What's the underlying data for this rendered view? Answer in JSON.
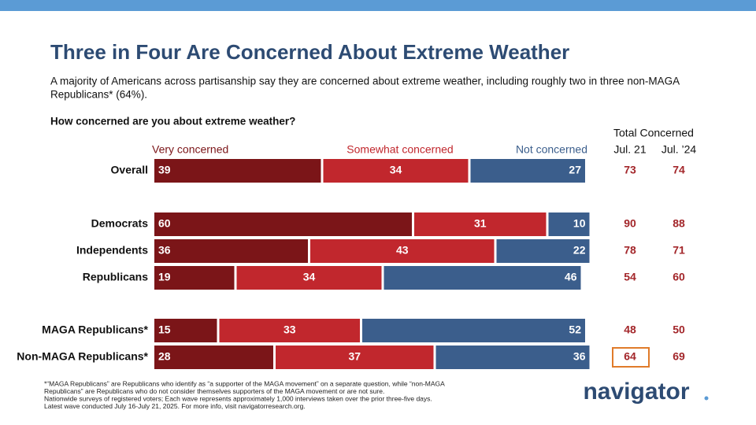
{
  "chart_data": {
    "type": "bar",
    "orientation": "horizontal",
    "stacked": true,
    "title": "Three in Four Are Concerned About Extreme Weather",
    "subtitle": [
      "A majority of Americans across partisanship say they are concerned about extreme weather, including roughly two in three non-MAGA",
      "Republicans* (64%)."
    ],
    "question": "How concerned are you about extreme weather?",
    "categories": [
      "Overall",
      "Democrats",
      "Independents",
      "Republicans",
      "MAGA Republicans*",
      "Non-MAGA Republicans*"
    ],
    "series": [
      {
        "name": "Very concerned",
        "color": "#7b1518",
        "values": [
          39,
          60,
          36,
          19,
          15,
          28
        ]
      },
      {
        "name": "Somewhat concerned",
        "color": "#c1272d",
        "values": [
          34,
          31,
          43,
          34,
          33,
          37
        ]
      },
      {
        "name": "Not concerned",
        "color": "#3b5e8c",
        "values": [
          27,
          10,
          22,
          46,
          52,
          36
        ]
      }
    ],
    "total_concerned": {
      "title": "Total Concerned",
      "columns": [
        {
          "name": "Jul. 21",
          "values": [
            73,
            90,
            78,
            54,
            48,
            64
          ]
        },
        {
          "name": "Jul. ’24",
          "values": [
            74,
            88,
            71,
            60,
            50,
            69
          ]
        }
      ],
      "color": "#a3262a"
    },
    "footnote": [
      "*“MAGA Republicans” are Republicans who identify as “a supporter of the MAGA movement” on a separate question, while “non-MAGA",
      "Republicans” are Republicans who do not consider themselves supporters of the MAGA movement or are not sure.",
      "Nationwide surveys of registered voters; Each wave represents approximately 1,000 interviews taken over the prior three-five days.",
      "Latest wave conducted July 16-July 21, 2025. For more info, visit navigatorresearch.org."
    ],
    "logo": "navigator"
  }
}
